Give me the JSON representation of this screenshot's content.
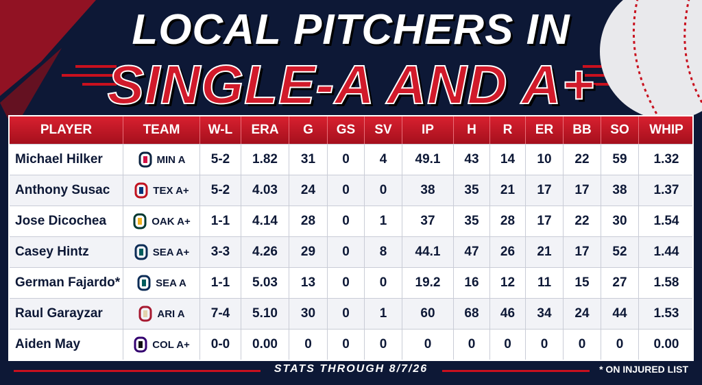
{
  "header": {
    "title_line1": "LOCAL PITCHERS IN",
    "title_line2": "SINGLE-A AND A+"
  },
  "table": {
    "columns": [
      "PLAYER",
      "TEAM",
      "W-L",
      "ERA",
      "G",
      "GS",
      "SV",
      "IP",
      "H",
      "R",
      "ER",
      "BB",
      "SO",
      "WHIP"
    ],
    "rows": [
      [
        "Michael Hilker",
        "MIN A",
        "5-2",
        "1.82",
        "31",
        "0",
        "4",
        "49.1",
        "43",
        "14",
        "10",
        "22",
        "59",
        "1.32"
      ],
      [
        "Anthony Susac",
        "TEX A+",
        "5-2",
        "4.03",
        "24",
        "0",
        "0",
        "38",
        "35",
        "21",
        "17",
        "17",
        "38",
        "1.37"
      ],
      [
        "Jose Dicochea",
        "OAK A+",
        "1-1",
        "4.14",
        "28",
        "0",
        "1",
        "37",
        "35",
        "28",
        "17",
        "22",
        "30",
        "1.54"
      ],
      [
        "Casey Hintz",
        "SEA A+",
        "3-3",
        "4.26",
        "29",
        "0",
        "8",
        "44.1",
        "47",
        "26",
        "21",
        "17",
        "52",
        "1.44"
      ],
      [
        "German Fajardo*",
        "SEA A",
        "1-1",
        "5.03",
        "13",
        "0",
        "0",
        "19.2",
        "16",
        "12",
        "11",
        "15",
        "27",
        "1.58"
      ],
      [
        "Raul Garayzar",
        "ARI A",
        "7-4",
        "5.10",
        "30",
        "0",
        "1",
        "60",
        "68",
        "46",
        "34",
        "24",
        "44",
        "1.53"
      ],
      [
        "Aiden May",
        "COL A+",
        "0-0",
        "0.00",
        "0",
        "0",
        "0",
        "0",
        "0",
        "0",
        "0",
        "0",
        "0",
        "0.00"
      ]
    ]
  },
  "footer": {
    "note": "STATS THROUGH 8/7/26",
    "legend": "* ON INJURED LIST"
  }
}
